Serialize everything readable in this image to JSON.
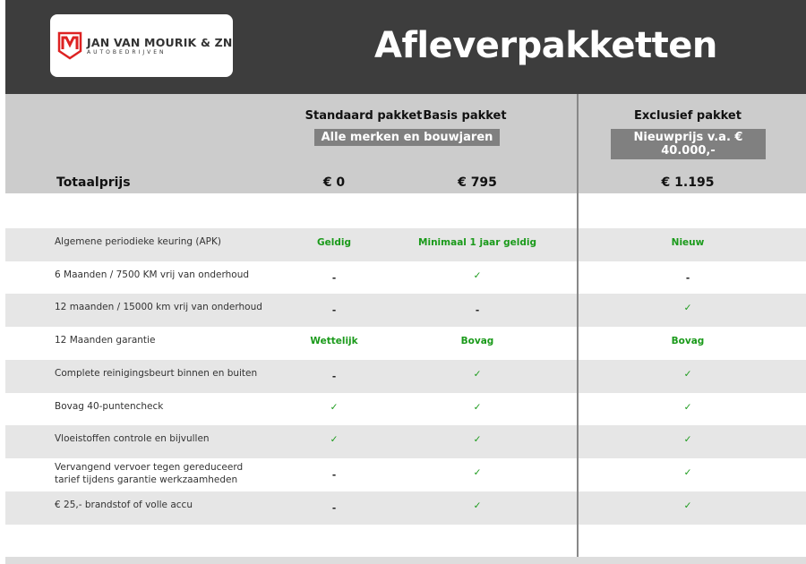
{
  "logo": {
    "name": "JAN VAN MOURIK & ZN",
    "sub": "AUTOBEDRIJVEN"
  },
  "title": "Afleverpakketten",
  "packages": [
    {
      "name": "Standaard pakket"
    },
    {
      "name": "Basis pakket"
    },
    {
      "name": "Exclusief pakket"
    }
  ],
  "bands": {
    "std_basis": "Alle merken en bouwjaren",
    "exclusief": "Nieuwprijs v.a. € 40.000,-"
  },
  "total": {
    "label": "Totaalprijs",
    "prices": [
      "€ 0",
      "€ 795",
      "€ 1.195"
    ]
  },
  "colors": {
    "header": "#3d3d3d",
    "accent_green": "#1a9a1a",
    "band": "#808080"
  },
  "rows": [
    {
      "label": "Algemene periodieke keuring (APK)",
      "values": [
        "Geldig",
        "Minimaal 1 jaar geldig",
        "Nieuw"
      ]
    },
    {
      "label": "6 Maanden / 7500 KM vrij van onderhoud",
      "values": [
        "-",
        "✓",
        "-"
      ]
    },
    {
      "label": "12 maanden / 15000 km vrij van onderhoud",
      "values": [
        "-",
        "-",
        "✓"
      ]
    },
    {
      "label": "12 Maanden  garantie",
      "values": [
        "Wettelijk",
        "Bovag",
        "Bovag"
      ]
    },
    {
      "label": "Complete reinigingsbeurt binnen en buiten",
      "values": [
        "-",
        "✓",
        "✓"
      ]
    },
    {
      "label": "Bovag 40-puntencheck",
      "values": [
        "✓",
        "✓",
        "✓"
      ]
    },
    {
      "label": "Vloeistoffen controle en bijvullen",
      "values": [
        "✓",
        "✓",
        "✓"
      ]
    },
    {
      "label": "Vervangend vervoer tegen gereduceerd tarief tijdens garantie werkzaamheden",
      "values": [
        "-",
        "✓",
        "✓"
      ]
    },
    {
      "label": "€ 25,- brandstof of  volle accu",
      "values": [
        "-",
        "✓",
        "✓"
      ]
    }
  ]
}
